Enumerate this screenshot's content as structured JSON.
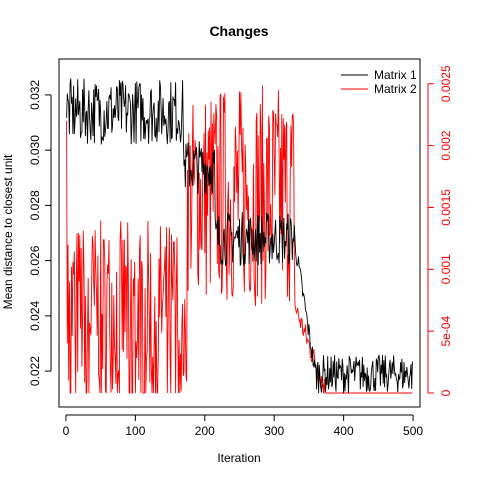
{
  "chart_data": {
    "type": "line",
    "title": "Changes",
    "xlabel": "Iteration",
    "ylabel": "Mean distance to closest unit",
    "xlim": [
      0,
      500
    ],
    "ylim_left": [
      0.0207,
      0.0333
    ],
    "ylim_right": [
      0,
      0.0027
    ],
    "xticks": [
      "0",
      "100",
      "200",
      "300",
      "400",
      "500"
    ],
    "yticks_left": [
      "0.022",
      "0.024",
      "0.026",
      "0.028",
      "0.030",
      "0.032"
    ],
    "yticks_right": [
      "0",
      "5e-04",
      "0.001",
      "0.0015",
      "0.002",
      "0.0025"
    ],
    "legend": {
      "position": "top-right"
    },
    "colors": {
      "matrix1": "#000000",
      "matrix2": "#ff0000",
      "right_axis": "#ff0000"
    },
    "series": [
      {
        "name": "Matrix 1",
        "axis": "left",
        "color": "#000000",
        "segments": [
          {
            "x_start": 1,
            "x_end": 170,
            "center": 0.0314,
            "amplitude": 0.0012
          },
          {
            "x_start": 170,
            "x_end": 215,
            "center": 0.0294,
            "amplitude": 0.001
          },
          {
            "x_start": 215,
            "x_end": 330,
            "center": 0.0268,
            "amplitude": 0.001
          },
          {
            "x_start": 330,
            "x_end": 360,
            "center_from": 0.0266,
            "center_to": 0.0218,
            "amplitude": 0.0004
          },
          {
            "x_start": 360,
            "x_end": 500,
            "center": 0.0219,
            "amplitude": 0.0007
          }
        ]
      },
      {
        "name": "Matrix 2",
        "axis": "right",
        "color": "#ff0000",
        "segments": [
          {
            "x_start": 1,
            "x_end": 6,
            "values": [
              0.0022,
              0.0004,
              0.0012,
              0.0001,
              0.0009,
              0.0003
            ]
          },
          {
            "x_start": 6,
            "x_end": 165,
            "center": 0.0007,
            "amplitude": 0.0007,
            "zeros": true
          },
          {
            "x_start": 165,
            "x_end": 175,
            "center": 0.0004,
            "amplitude": 0.0004
          },
          {
            "x_start": 175,
            "x_end": 200,
            "center": 0.0016,
            "amplitude": 0.0008
          },
          {
            "x_start": 200,
            "x_end": 330,
            "center": 0.0016,
            "amplitude": 0.0009
          },
          {
            "x_start": 330,
            "x_end": 375,
            "center_from": 0.0007,
            "center_to": 0.0,
            "amplitude": 0.0001
          },
          {
            "x_start": 375,
            "x_end": 500,
            "center": 0.0,
            "amplitude": 0.0
          }
        ]
      }
    ]
  }
}
